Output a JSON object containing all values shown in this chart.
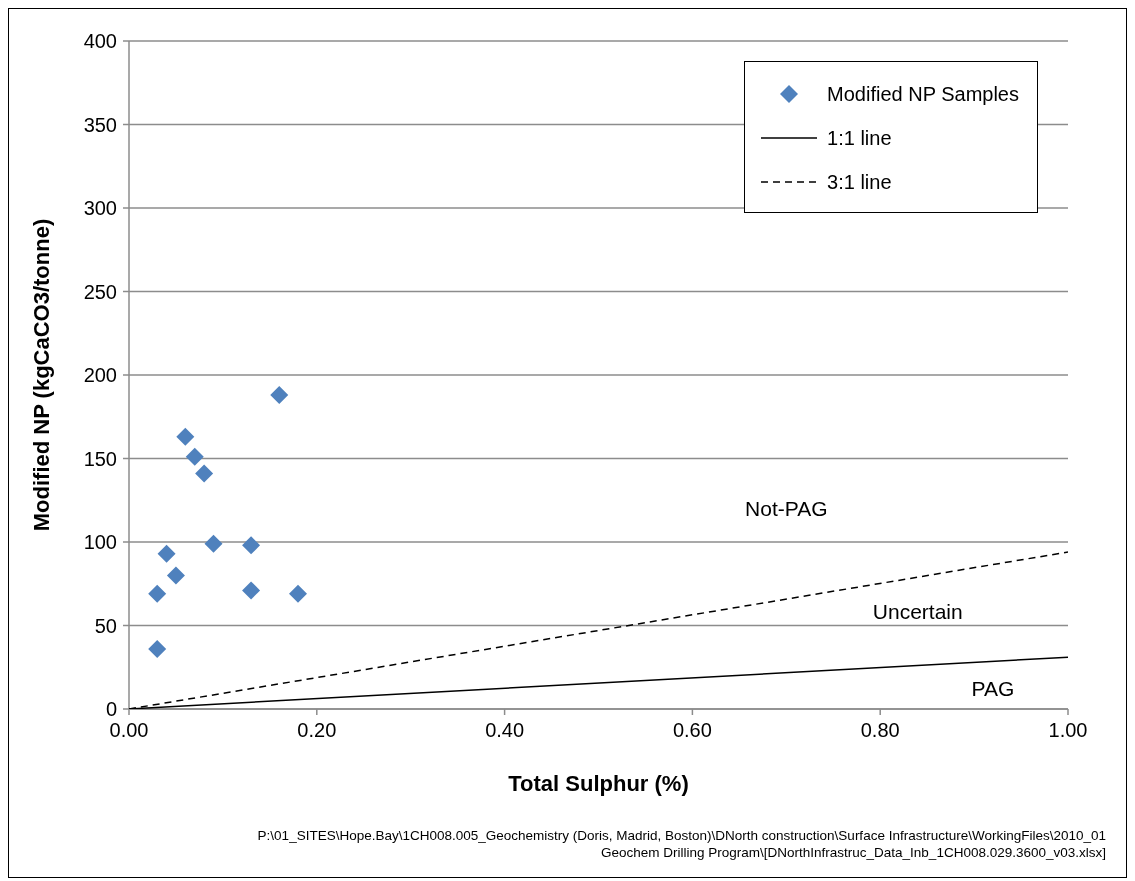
{
  "chart_data": {
    "type": "scatter",
    "xlabel": "Total Sulphur (%)",
    "ylabel": "Modified NP (kgCaCO3/tonne)",
    "xlim": [
      0,
      1
    ],
    "xticks": [
      {
        "value": 0,
        "label": "0.00"
      },
      {
        "value": 0.2,
        "label": "0.20"
      },
      {
        "value": 0.4,
        "label": "0.40"
      },
      {
        "value": 0.6,
        "label": "0.60"
      },
      {
        "value": 0.8,
        "label": "0.80"
      },
      {
        "value": 1,
        "label": "1.00"
      }
    ],
    "ylim": [
      0,
      400
    ],
    "yticks": [
      0,
      50,
      100,
      150,
      200,
      250,
      300,
      350,
      400
    ],
    "grid": "y",
    "legend": "top right",
    "series": [
      {
        "name": "Modified NP Samples",
        "marker": "diamond",
        "color": "#4f81bd",
        "x": [
          0.03,
          0.03,
          0.04,
          0.05,
          0.06,
          0.07,
          0.08,
          0.09,
          0.13,
          0.13,
          0.16,
          0.18
        ],
        "values": [
          69,
          36,
          93,
          80,
          163,
          151,
          141,
          99,
          98,
          71,
          188,
          69
        ]
      },
      {
        "name": "1:1 line",
        "type": "line",
        "line_style": "solid",
        "color": "#000000",
        "x": [
          0,
          1
        ],
        "values": [
          0,
          31
        ]
      },
      {
        "name": "3:1 line",
        "type": "line",
        "line_style": "dashed",
        "color": "#000000",
        "x": [
          0,
          1
        ],
        "values": [
          0,
          94
        ]
      }
    ],
    "annotations": [
      "Not-PAG",
      "Uncertain",
      "PAG",
      "P:\\01_SITES\\Hope.Bay\\1CH008.005_Geochemistry (Doris, Madrid, Boston)\\DNorth construction\\Surface Infrastructure\\WorkingFiles\\2010_01 Geochem Drilling Program\\[DNorthInfrastruc_Data_Inb_1CH008.029.3600_v03.xlsx]"
    ]
  }
}
